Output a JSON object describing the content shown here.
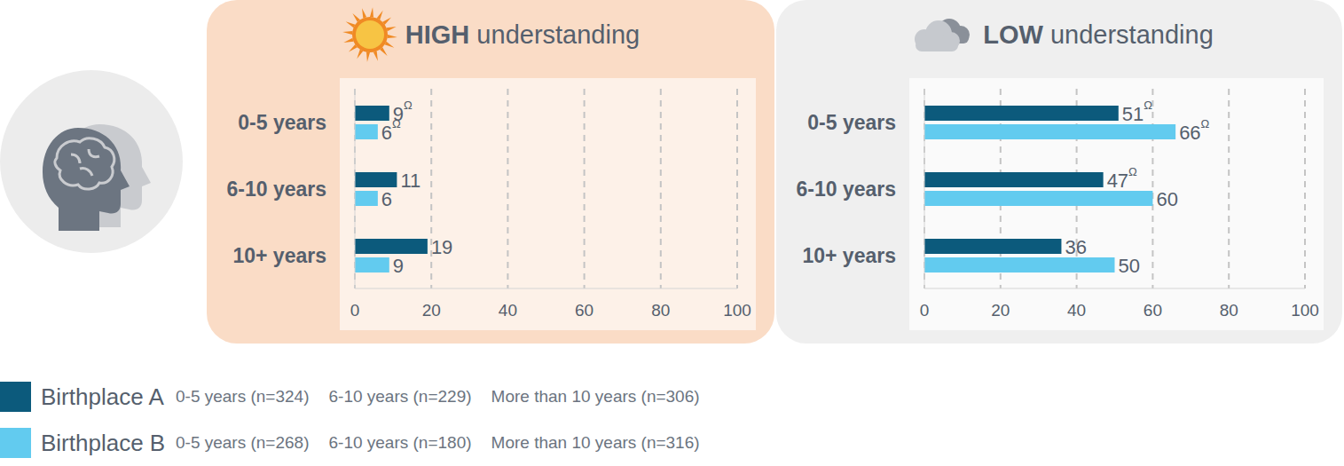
{
  "chart_data": [
    {
      "type": "bar",
      "title": "HIGH understanding",
      "orientation": "horizontal",
      "categories": [
        "0-5 years",
        "6-10 years",
        "10+ years"
      ],
      "series": [
        {
          "name": "Birthplace A",
          "color": "#0c5a7c",
          "values": [
            9,
            11,
            19
          ],
          "value_labels": [
            "9Ω",
            "11",
            "19"
          ]
        },
        {
          "name": "Birthplace B",
          "color": "#62cbef",
          "values": [
            6,
            6,
            9
          ],
          "value_labels": [
            "6Ω",
            "6",
            "9"
          ]
        }
      ],
      "xlim": [
        0,
        100
      ],
      "xticks": [
        0,
        20,
        40,
        60,
        80,
        100
      ],
      "grid": true,
      "data_labels": true
    },
    {
      "type": "bar",
      "title": "LOW understanding",
      "orientation": "horizontal",
      "categories": [
        "0-5 years",
        "6-10 years",
        "10+ years"
      ],
      "series": [
        {
          "name": "Birthplace A",
          "color": "#0c5a7c",
          "values": [
            51,
            47,
            36
          ],
          "value_labels": [
            "51Ω",
            "47Ω",
            "36"
          ]
        },
        {
          "name": "Birthplace B",
          "color": "#62cbef",
          "values": [
            66,
            60,
            50
          ],
          "value_labels": [
            "66Ω",
            "60",
            "50"
          ]
        }
      ],
      "xlim": [
        0,
        100
      ],
      "xticks": [
        0,
        20,
        40,
        60,
        80,
        100
      ],
      "grid": true,
      "data_labels": true
    }
  ],
  "sample_sizes": [
    [
      "0-5 years (n=324)",
      "6-10 years (n=229)",
      "More than 10 years (n=306)"
    ],
    [
      "0-5 years (n=268)",
      "6-10 years (n=180)",
      "More than 10 years (n=316)"
    ]
  ]
}
